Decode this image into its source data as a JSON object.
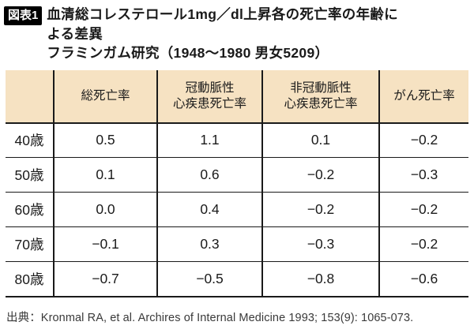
{
  "figure": {
    "badge": "図表1",
    "title_lines": [
      "血清総コレステロール1mg／dl上昇各の死亡率の年齢に",
      "よる差異"
    ],
    "subtitle": "フラミンガム研究（1948〜1980 男女5209）"
  },
  "table": {
    "corner_label": "",
    "columns": [
      {
        "lines": [
          "総死亡率",
          ""
        ]
      },
      {
        "lines": [
          "冠動脈性",
          "心疾患死亡率"
        ]
      },
      {
        "lines": [
          "非冠動脈性",
          "心疾患死亡率"
        ]
      },
      {
        "lines": [
          "がん死亡率",
          ""
        ]
      }
    ],
    "rows": [
      {
        "label": "40歳",
        "values": [
          "0.5",
          "1.1",
          "0.1",
          "−0.2"
        ]
      },
      {
        "label": "50歳",
        "values": [
          "0.1",
          "0.6",
          "−0.2",
          "−0.3"
        ]
      },
      {
        "label": "60歳",
        "values": [
          "0.0",
          "0.4",
          "−0.2",
          "−0.2"
        ]
      },
      {
        "label": "70歳",
        "values": [
          "−0.1",
          "0.3",
          "−0.3",
          "−0.2"
        ]
      },
      {
        "label": "80歳",
        "values": [
          "−0.7",
          "−0.5",
          "−0.8",
          "−0.6"
        ]
      }
    ]
  },
  "chart_data": {
    "type": "table",
    "title": "血清総コレステロール1mg／dl上昇各の死亡率の年齢による差異",
    "subtitle": "フラミンガム研究（1948〜1980 男女5209）",
    "categories": [
      "40歳",
      "50歳",
      "60歳",
      "70歳",
      "80歳"
    ],
    "series": [
      {
        "name": "総死亡率",
        "values": [
          0.5,
          0.1,
          0.0,
          -0.1,
          -0.7
        ]
      },
      {
        "name": "冠動脈性心疾患死亡率",
        "values": [
          1.1,
          0.6,
          0.4,
          0.3,
          -0.5
        ]
      },
      {
        "name": "非冠動脈性心疾患死亡率",
        "values": [
          0.1,
          -0.2,
          -0.2,
          -0.3,
          -0.8
        ]
      },
      {
        "name": "がん死亡率",
        "values": [
          -0.2,
          -0.3,
          -0.2,
          -0.2,
          -0.6
        ]
      }
    ]
  },
  "footer": {
    "source": "出典：Kronmal RA, et al. Archires of Internal Medicine 1993; 153(9): 1065-073."
  },
  "colors": {
    "header_bg": "#f6e2c2",
    "border": "#1a1a1a",
    "badge_bg": "#000000",
    "badge_text": "#ffffff",
    "text": "#1a1a1a",
    "page_bg": "#ffffff"
  }
}
